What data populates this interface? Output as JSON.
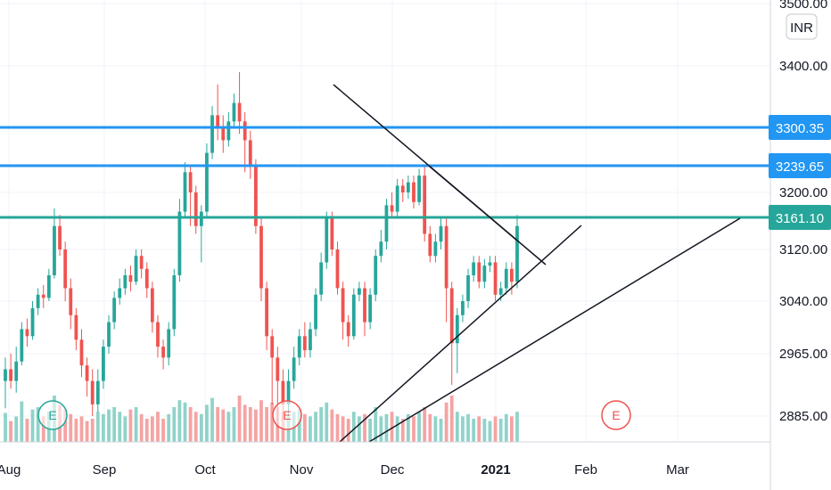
{
  "chart_data": {
    "type": "candlestick",
    "currency": "INR",
    "y_ticks": [
      3500.0,
      3400.0,
      3200.0,
      3120.0,
      3040.0,
      2965.0,
      2885.0
    ],
    "y_tick_labels": [
      "3500.00",
      "3400.00",
      "3200.00",
      "3120.00",
      "3040.00",
      "2965.00",
      "2885.00"
    ],
    "x_ticks": [
      {
        "label": "Aug",
        "bold": false
      },
      {
        "label": "Sep",
        "bold": false
      },
      {
        "label": "Oct",
        "bold": false
      },
      {
        "label": "Nov",
        "bold": false
      },
      {
        "label": "Dec",
        "bold": false
      },
      {
        "label": "2021",
        "bold": true
      },
      {
        "label": "Feb",
        "bold": false
      },
      {
        "label": "Mar",
        "bold": false
      }
    ],
    "horizontal_levels": [
      {
        "label": "3300.35",
        "value": 3300.35,
        "color": "#2196f3"
      },
      {
        "label": "3239.65",
        "value": 3239.65,
        "color": "#2196f3"
      },
      {
        "label": "3161.10",
        "value": 3161.1,
        "color": "#26a69a"
      }
    ],
    "event_markers": [
      {
        "label": "E",
        "color": "#26a69a"
      },
      {
        "label": "E",
        "color": "#ef5350"
      },
      {
        "label": "E",
        "color": "#ef5350"
      }
    ],
    "colors": {
      "up": "#26a69a",
      "down": "#ef5350",
      "vol_up": "#8fd3c9",
      "vol_down": "#f5a3a3"
    },
    "candles": [
      [
        2930,
        2945,
        2895,
        2960
      ],
      [
        2945,
        2930,
        2920,
        2965
      ],
      [
        2930,
        2955,
        2915,
        2975
      ],
      [
        2955,
        3000,
        2950,
        3010
      ],
      [
        3000,
        2990,
        2975,
        3015
      ],
      [
        2990,
        3030,
        2985,
        3040
      ],
      [
        3030,
        3050,
        3020,
        3060
      ],
      [
        3050,
        3045,
        3030,
        3065
      ],
      [
        3045,
        3080,
        3040,
        3090
      ],
      [
        3080,
        3150,
        3075,
        3175
      ],
      [
        3150,
        3120,
        3110,
        3165
      ],
      [
        3120,
        3060,
        3040,
        3130
      ],
      [
        3060,
        3020,
        3000,
        3075
      ],
      [
        3020,
        2985,
        2970,
        3030
      ],
      [
        2985,
        2950,
        2935,
        3000
      ],
      [
        2950,
        2930,
        2910,
        2960
      ],
      [
        2930,
        2900,
        2885,
        2945
      ],
      [
        2900,
        2930,
        2890,
        2945
      ],
      [
        2930,
        2975,
        2920,
        2985
      ],
      [
        2975,
        3010,
        2965,
        3020
      ],
      [
        3010,
        3045,
        3000,
        3055
      ],
      [
        3045,
        3060,
        3035,
        3075
      ],
      [
        3060,
        3080,
        3050,
        3090
      ],
      [
        3080,
        3070,
        3055,
        3095
      ],
      [
        3070,
        3110,
        3065,
        3120
      ],
      [
        3110,
        3090,
        3075,
        3120
      ],
      [
        3090,
        3060,
        3045,
        3100
      ],
      [
        3060,
        3010,
        2995,
        3070
      ],
      [
        3010,
        2975,
        2960,
        3020
      ],
      [
        2975,
        2960,
        2945,
        2985
      ],
      [
        2960,
        3000,
        2950,
        3010
      ],
      [
        3000,
        3080,
        2990,
        3090
      ],
      [
        3080,
        3170,
        3070,
        3190
      ],
      [
        3170,
        3230,
        3160,
        3245
      ],
      [
        3230,
        3200,
        3150,
        3240
      ],
      [
        3200,
        3150,
        3140,
        3210
      ],
      [
        3150,
        3170,
        3100,
        3180
      ],
      [
        3170,
        3260,
        3160,
        3275
      ],
      [
        3260,
        3320,
        3250,
        3335
      ],
      [
        3320,
        3300,
        3280,
        3370
      ],
      [
        3300,
        3280,
        3260,
        3320
      ],
      [
        3280,
        3310,
        3270,
        3325
      ],
      [
        3310,
        3340,
        3300,
        3355
      ],
      [
        3340,
        3310,
        3290,
        3390
      ],
      [
        3310,
        3280,
        3230,
        3325
      ],
      [
        3280,
        3240,
        3220,
        3295
      ],
      [
        3240,
        3150,
        3140,
        3250
      ],
      [
        3150,
        3060,
        3040,
        3160
      ],
      [
        3060,
        2990,
        2970,
        3070
      ],
      [
        2990,
        2960,
        2900,
        3000
      ],
      [
        2960,
        2930,
        2870,
        2975
      ],
      [
        2930,
        2900,
        2880,
        2945
      ],
      [
        2900,
        2930,
        2885,
        2945
      ],
      [
        2930,
        2960,
        2920,
        2975
      ],
      [
        2960,
        2990,
        2950,
        3000
      ],
      [
        2990,
        2970,
        2960,
        3010
      ],
      [
        2970,
        3000,
        2960,
        3010
      ],
      [
        3000,
        3050,
        2990,
        3060
      ],
      [
        3050,
        3100,
        3040,
        3115
      ],
      [
        3100,
        3160,
        3090,
        3170
      ],
      [
        3160,
        3120,
        3110,
        3170
      ],
      [
        3120,
        3060,
        3050,
        3130
      ],
      [
        3060,
        3010,
        2985,
        3070
      ],
      [
        3010,
        2990,
        2975,
        3020
      ],
      [
        2990,
        3050,
        2985,
        3060
      ],
      [
        3050,
        3060,
        3040,
        3070
      ],
      [
        3060,
        3010,
        2990,
        3070
      ],
      [
        3010,
        3050,
        3000,
        3060
      ],
      [
        3050,
        3110,
        3040,
        3120
      ],
      [
        3110,
        3130,
        3100,
        3145
      ],
      [
        3130,
        3180,
        3120,
        3190
      ],
      [
        3180,
        3170,
        3160,
        3200
      ],
      [
        3170,
        3210,
        3160,
        3220
      ],
      [
        3210,
        3200,
        3185,
        3220
      ],
      [
        3200,
        3215,
        3190,
        3225
      ],
      [
        3215,
        3185,
        3175,
        3225
      ],
      [
        3185,
        3225,
        3180,
        3235
      ],
      [
        3225,
        3140,
        3130,
        3240
      ],
      [
        3140,
        3110,
        3100,
        3150
      ],
      [
        3110,
        3130,
        3100,
        3140
      ],
      [
        3130,
        3150,
        3120,
        3160
      ],
      [
        3150,
        3060,
        3010,
        3160
      ],
      [
        3060,
        2980,
        2925,
        3070
      ],
      [
        2980,
        3020,
        2940,
        3030
      ],
      [
        3020,
        3040,
        3010,
        3050
      ],
      [
        3040,
        3080,
        3030,
        3090
      ],
      [
        3080,
        3100,
        3070,
        3110
      ],
      [
        3100,
        3070,
        3060,
        3110
      ],
      [
        3070,
        3095,
        3060,
        3105
      ],
      [
        3095,
        3100,
        3085,
        3110
      ],
      [
        3100,
        3050,
        3040,
        3110
      ],
      [
        3050,
        3060,
        3040,
        3070
      ],
      [
        3060,
        3090,
        3050,
        3100
      ],
      [
        3090,
        3070,
        3050,
        3100
      ],
      [
        3070,
        3150,
        3060,
        3165
      ]
    ],
    "volumes": [
      0.25,
      0.18,
      0.22,
      0.35,
      0.2,
      0.28,
      0.3,
      0.22,
      0.26,
      0.4,
      0.32,
      0.28,
      0.24,
      0.2,
      0.22,
      0.18,
      0.2,
      0.26,
      0.24,
      0.28,
      0.3,
      0.26,
      0.22,
      0.28,
      0.3,
      0.24,
      0.2,
      0.22,
      0.26,
      0.2,
      0.24,
      0.3,
      0.36,
      0.34,
      0.3,
      0.26,
      0.24,
      0.32,
      0.38,
      0.3,
      0.28,
      0.26,
      0.3,
      0.4,
      0.32,
      0.3,
      0.28,
      0.36,
      0.3,
      0.34,
      0.3,
      0.26,
      0.22,
      0.26,
      0.28,
      0.24,
      0.22,
      0.26,
      0.3,
      0.34,
      0.28,
      0.24,
      0.22,
      0.2,
      0.26,
      0.22,
      0.24,
      0.2,
      0.3,
      0.22,
      0.24,
      0.26,
      0.22,
      0.2,
      0.24,
      0.22,
      0.26,
      0.3,
      0.24,
      0.22,
      0.2,
      0.34,
      0.4,
      0.26,
      0.22,
      0.24,
      0.2,
      0.22,
      0.2,
      0.18,
      0.22,
      0.2,
      0.24,
      0.22,
      0.26
    ]
  },
  "trendlines_label": "",
  "ui": {}
}
